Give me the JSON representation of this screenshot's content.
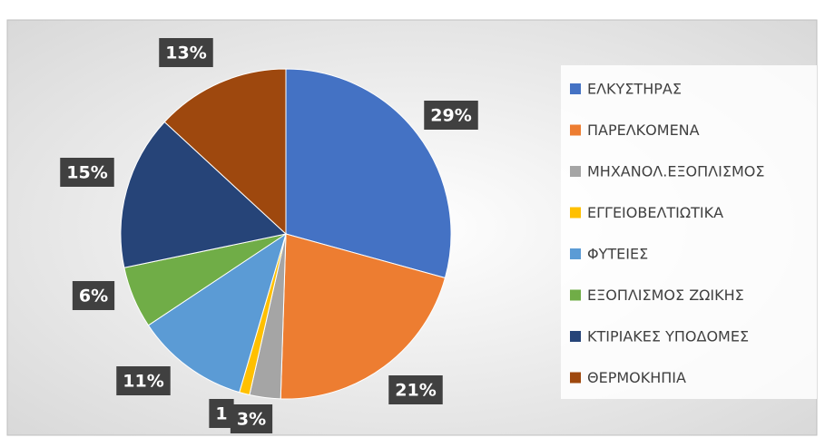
{
  "chart_data": {
    "type": "pie",
    "categories": [
      "ΕΛΚΥΣΤΗΡΑΣ",
      "ΠΑΡΕΛΚΟΜΕΝΑ",
      "ΜΗΧΑΝΟΛ.ΕΞΟΠΛΙΣΜΟΣ",
      "ΕΓΓΕΙΟΒΕΛΤΙΩΤΙΚΑ",
      "ΦΥΤΕΙΕΣ",
      "ΕΞΟΠΛΙΣΜΟΣ ΖΩΙΚΗΣ",
      "ΚΤΙΡΙΑΚΕΣ ΥΠΟΔΟΜΕΣ",
      "ΘΕΡΜΟΚΗΠΙΑ"
    ],
    "values": [
      29,
      21,
      3,
      1,
      11,
      6,
      15,
      13
    ],
    "value_labels": [
      "29%",
      "21%",
      "3%",
      "1",
      "11%",
      "6%",
      "15%",
      "13%"
    ],
    "colors": [
      "#4472c4",
      "#ed7d31",
      "#a5a5a5",
      "#ffc000",
      "#5b9bd5",
      "#70ad47",
      "#264478",
      "#9e480e"
    ],
    "legend": "right"
  }
}
